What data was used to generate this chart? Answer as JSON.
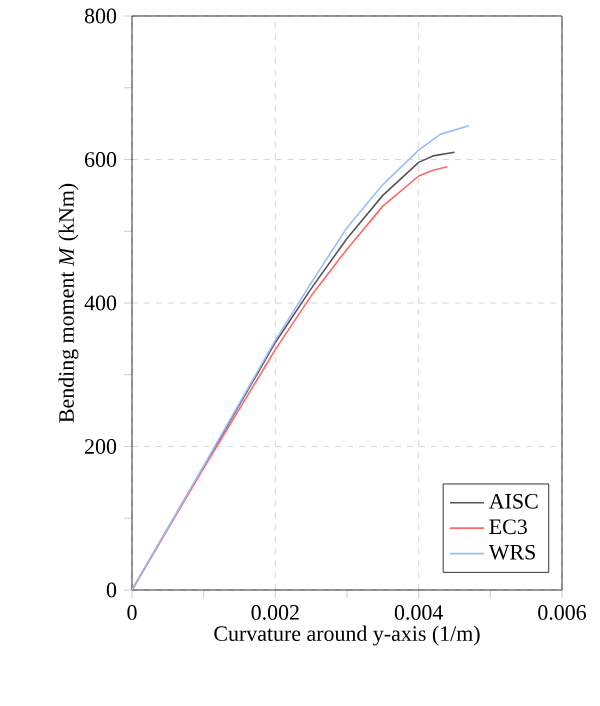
{
  "chart_data": {
    "type": "line",
    "xlabel": "Curvature around y-axis (1/m)",
    "ylabel": "Bending moment *M* (kNm)",
    "xlim": [
      0,
      0.006
    ],
    "ylim": [
      0,
      800
    ],
    "xticks": [
      0,
      0.002,
      0.004,
      0.006
    ],
    "yticks": [
      0,
      200,
      400,
      600,
      800
    ],
    "grid": true,
    "legend": "bottom right",
    "marker": "none",
    "line_style": "solid",
    "series": [
      {
        "name": "AISC",
        "color": "#555555",
        "x": [
          0,
          0.001,
          0.002,
          0.0025,
          0.003,
          0.0035,
          0.004,
          0.0042,
          0.0045
        ],
        "values": [
          0,
          172,
          345,
          420,
          490,
          550,
          596,
          605,
          610
        ]
      },
      {
        "name": "EC3",
        "color": "#ff6666",
        "x": [
          0,
          0.001,
          0.002,
          0.0025,
          0.003,
          0.0035,
          0.004,
          0.0042,
          0.0044
        ],
        "values": [
          0,
          170,
          335,
          410,
          475,
          535,
          577,
          585,
          590
        ]
      },
      {
        "name": "WRS",
        "color": "#99bbff",
        "x": [
          0,
          0.001,
          0.002,
          0.0025,
          0.003,
          0.0035,
          0.004,
          0.0043,
          0.0047
        ],
        "values": [
          0,
          173,
          348,
          428,
          505,
          565,
          613,
          635,
          647
        ]
      }
    ]
  }
}
